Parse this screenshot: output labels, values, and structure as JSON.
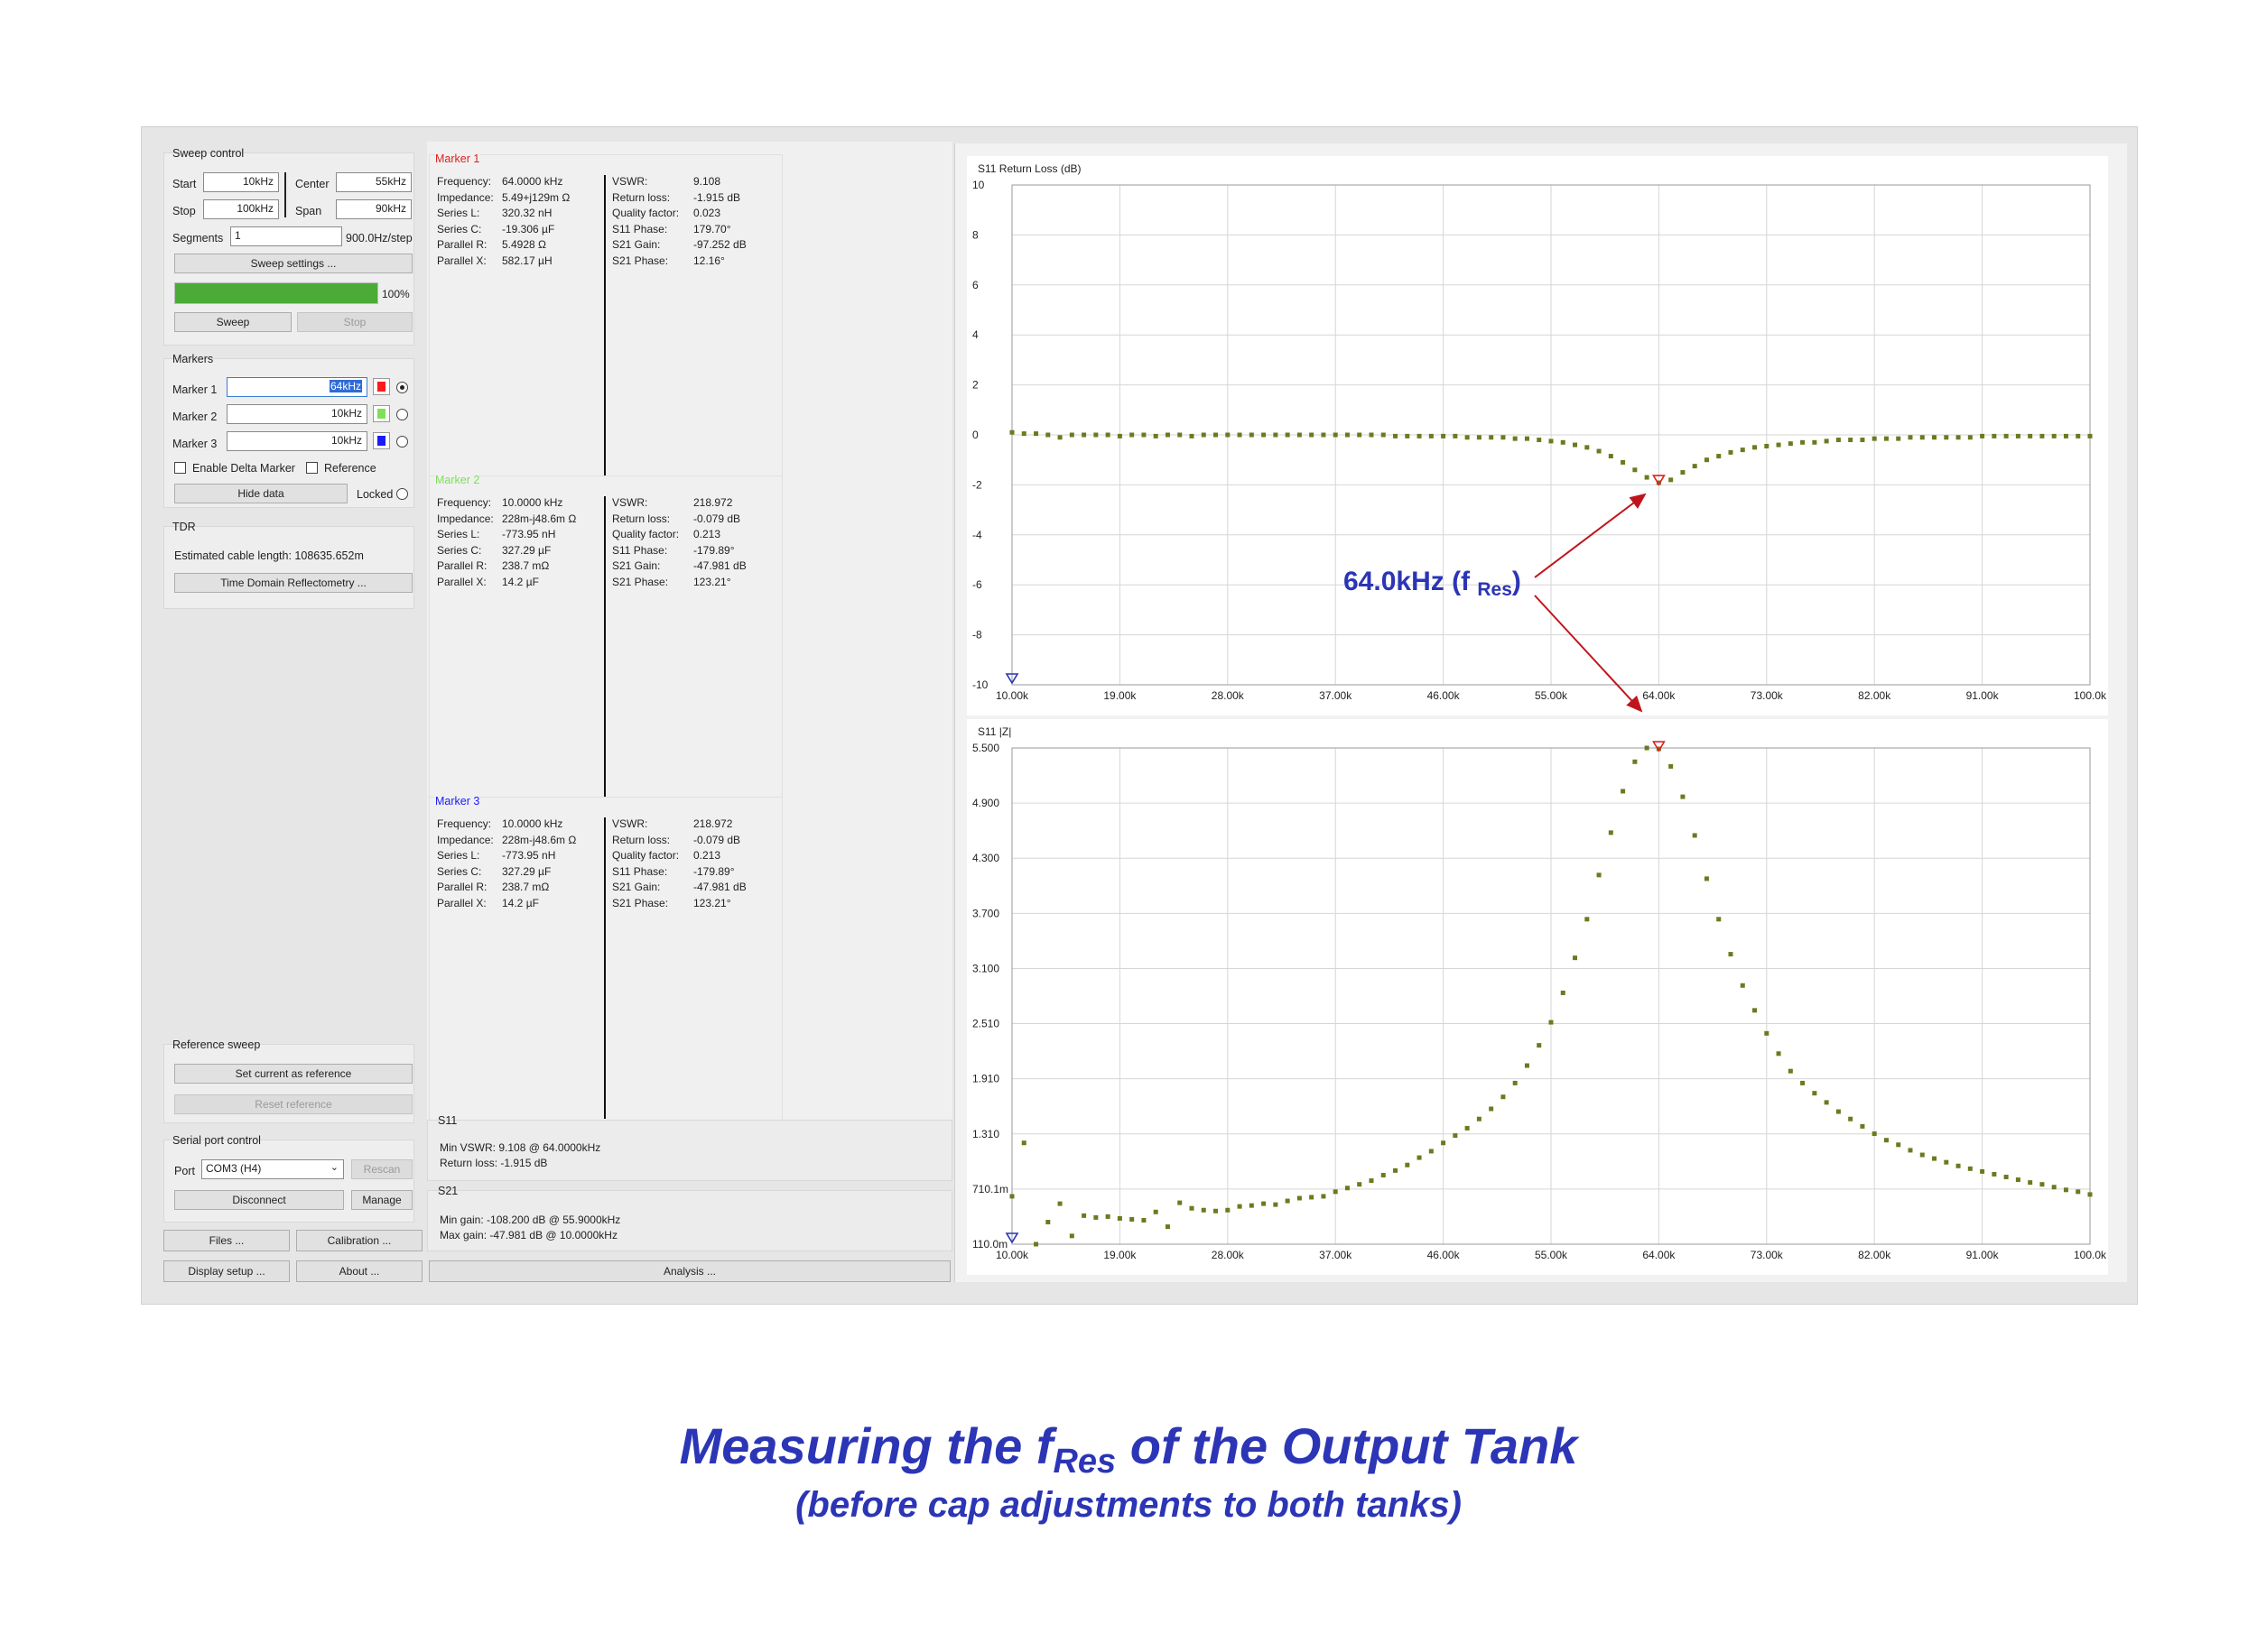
{
  "sweep_control": {
    "title": "Sweep control",
    "start_label": "Start",
    "start_value": "10kHz",
    "center_label": "Center",
    "center_value": "55kHz",
    "stop_label": "Stop",
    "stop_value": "100kHz",
    "span_label": "Span",
    "span_value": "90kHz",
    "segments_label": "Segments",
    "segments_value": "1",
    "step_text": "900.0Hz/step",
    "settings_button": "Sweep settings ...",
    "progress": 100,
    "progress_text": "100%",
    "sweep_button": "Sweep",
    "stop_button": "Stop"
  },
  "markers_group": {
    "title": "Markers",
    "items": [
      {
        "label": "Marker 1",
        "value": "64kHz",
        "color": "#ff1a1a",
        "selected": true
      },
      {
        "label": "Marker 2",
        "value": "10kHz",
        "color": "#7ee05a",
        "selected": false
      },
      {
        "label": "Marker 3",
        "value": "10kHz",
        "color": "#1a1aff",
        "selected": false
      }
    ],
    "delta_label": "Enable Delta Marker",
    "reference_label": "Reference",
    "hide_button": "Hide data",
    "locked_label": "Locked"
  },
  "tdr": {
    "title": "TDR",
    "cable_text": "Estimated cable length:  108635.652m",
    "button": "Time Domain Reflectometry ..."
  },
  "reference_sweep": {
    "title": "Reference sweep",
    "set_button": "Set current as reference",
    "reset_button": "Reset reference"
  },
  "serial": {
    "title": "Serial port control",
    "port_label": "Port",
    "port_value": "COM3 (H4)",
    "rescan_button": "Rescan",
    "disconnect_button": "Disconnect",
    "manage_button": "Manage"
  },
  "bottom_buttons": {
    "files": "Files ...",
    "calibration": "Calibration ...",
    "display": "Display setup ...",
    "about": "About ...",
    "analysis": "Analysis ..."
  },
  "marker_panels": [
    {
      "title": "Marker 1",
      "color": "#e02020",
      "left": [
        [
          "Frequency:",
          "64.0000 kHz"
        ],
        [
          "Impedance:",
          "5.49+j129m Ω"
        ],
        [
          "Series L:",
          "320.32 nH"
        ],
        [
          "Series C:",
          "-19.306 µF"
        ],
        [
          "Parallel R:",
          "5.4928 Ω"
        ],
        [
          "Parallel X:",
          "582.17 µH"
        ]
      ],
      "right": [
        [
          "VSWR:",
          "9.108"
        ],
        [
          "Return loss:",
          "-1.915 dB"
        ],
        [
          "Quality factor:",
          "0.023"
        ],
        [
          "S11 Phase:",
          "179.70°"
        ],
        [
          "S21 Gain:",
          "-97.252 dB"
        ],
        [
          "S21 Phase:",
          "12.16°"
        ]
      ]
    },
    {
      "title": "Marker 2",
      "color": "#7ee05a",
      "left": [
        [
          "Frequency:",
          "10.0000 kHz"
        ],
        [
          "Impedance:",
          "228m-j48.6m Ω"
        ],
        [
          "Series L:",
          "-773.95 nH"
        ],
        [
          "Series C:",
          "327.29 µF"
        ],
        [
          "Parallel R:",
          "238.7 mΩ"
        ],
        [
          "Parallel X:",
          "14.2 µF"
        ]
      ],
      "right": [
        [
          "VSWR:",
          "218.972"
        ],
        [
          "Return loss:",
          "-0.079 dB"
        ],
        [
          "Quality factor:",
          "0.213"
        ],
        [
          "S11 Phase:",
          "-179.89°"
        ],
        [
          "S21 Gain:",
          "-47.981 dB"
        ],
        [
          "S21 Phase:",
          "123.21°"
        ]
      ]
    },
    {
      "title": "Marker 3",
      "color": "#1a1aff",
      "left": [
        [
          "Frequency:",
          "10.0000 kHz"
        ],
        [
          "Impedance:",
          "228m-j48.6m Ω"
        ],
        [
          "Series L:",
          "-773.95 nH"
        ],
        [
          "Series C:",
          "327.29 µF"
        ],
        [
          "Parallel R:",
          "238.7 mΩ"
        ],
        [
          "Parallel X:",
          "14.2 µF"
        ]
      ],
      "right": [
        [
          "VSWR:",
          "218.972"
        ],
        [
          "Return loss:",
          "-0.079 dB"
        ],
        [
          "Quality factor:",
          "0.213"
        ],
        [
          "S11 Phase:",
          "-179.89°"
        ],
        [
          "S21 Gain:",
          "-47.981 dB"
        ],
        [
          "S21 Phase:",
          "123.21°"
        ]
      ]
    }
  ],
  "s11_summary": {
    "title": "S11",
    "min_vswr": "Min VSWR:  9.108 @ 64.0000kHz",
    "return_loss": "Return loss:  -1.915 dB"
  },
  "s21_summary": {
    "title": "S21",
    "min_gain": "Min gain:  -108.200 dB @ 55.9000kHz",
    "max_gain": "Max gain:  -47.981 dB @ 10.0000kHz"
  },
  "annotation": {
    "main": "64.0kHz (f ",
    "sub": "Res",
    "close": ")"
  },
  "caption": {
    "line1_a": "Measuring the f",
    "line1_sub": "Res",
    "line1_b": " of the Output Tank",
    "line2": "(before cap adjustments to both tanks)"
  },
  "chart_data": [
    {
      "type": "scatter",
      "title": "S11 Return Loss (dB)",
      "xlabel": "",
      "ylabel": "",
      "xlim": [
        10000,
        100000
      ],
      "ylim": [
        -10,
        10
      ],
      "x_ticks": [
        "10.00k",
        "19.00k",
        "28.00k",
        "37.00k",
        "46.00k",
        "55.00k",
        "64.00k",
        "73.00k",
        "82.00k",
        "91.00k",
        "100.0k"
      ],
      "y_ticks": [
        "10",
        "8",
        "6",
        "4",
        "2",
        "0",
        "-2",
        "-4",
        "-6",
        "-8",
        "-10"
      ],
      "grid": true,
      "color": "#6b7a1f",
      "marker_x": 64000,
      "marker_y": -1.915,
      "marker_color": "#e02020",
      "start_marker_x": 10000,
      "start_marker_color": "#2b35b5",
      "x": [
        10000,
        11000,
        12000,
        13000,
        14000,
        15000,
        16000,
        17000,
        18000,
        19000,
        20000,
        21000,
        22000,
        23000,
        24000,
        25000,
        26000,
        27000,
        28000,
        29000,
        30000,
        31000,
        32000,
        33000,
        34000,
        35000,
        36000,
        37000,
        38000,
        39000,
        40000,
        41000,
        42000,
        43000,
        44000,
        45000,
        46000,
        47000,
        48000,
        49000,
        50000,
        51000,
        52000,
        53000,
        54000,
        55000,
        56000,
        57000,
        58000,
        59000,
        60000,
        61000,
        62000,
        63000,
        64000,
        65000,
        66000,
        67000,
        68000,
        69000,
        70000,
        71000,
        72000,
        73000,
        74000,
        75000,
        76000,
        77000,
        78000,
        79000,
        80000,
        81000,
        82000,
        83000,
        84000,
        85000,
        86000,
        87000,
        88000,
        89000,
        90000,
        91000,
        92000,
        93000,
        94000,
        95000,
        96000,
        97000,
        98000,
        99000,
        100000
      ],
      "values": [
        0.1,
        0.05,
        0.05,
        0.0,
        -0.1,
        0.0,
        0.0,
        0.0,
        0.0,
        -0.05,
        0.0,
        0.0,
        -0.05,
        0.0,
        0.0,
        -0.05,
        0.0,
        0.0,
        0.0,
        0.0,
        0.0,
        0.0,
        0.0,
        0.0,
        0.0,
        0.0,
        0.0,
        0.0,
        0.0,
        0.0,
        0.0,
        0.0,
        -0.05,
        -0.05,
        -0.05,
        -0.05,
        -0.05,
        -0.05,
        -0.1,
        -0.1,
        -0.1,
        -0.1,
        -0.15,
        -0.15,
        -0.2,
        -0.25,
        -0.3,
        -0.4,
        -0.5,
        -0.65,
        -0.85,
        -1.1,
        -1.4,
        -1.7,
        -1.915,
        -1.8,
        -1.5,
        -1.25,
        -1.0,
        -0.85,
        -0.7,
        -0.6,
        -0.5,
        -0.45,
        -0.4,
        -0.35,
        -0.3,
        -0.3,
        -0.25,
        -0.2,
        -0.2,
        -0.2,
        -0.15,
        -0.15,
        -0.15,
        -0.1,
        -0.1,
        -0.1,
        -0.1,
        -0.1,
        -0.1,
        -0.05,
        -0.05,
        -0.05,
        -0.05,
        -0.05,
        -0.05,
        -0.05,
        -0.05,
        -0.05,
        -0.05
      ]
    },
    {
      "type": "scatter",
      "title": "S11 |Z|",
      "xlabel": "",
      "ylabel": "",
      "xlim": [
        10000,
        100000
      ],
      "ylim": [
        0.11,
        5.5
      ],
      "x_ticks": [
        "10.00k",
        "19.00k",
        "28.00k",
        "37.00k",
        "46.00k",
        "55.00k",
        "64.00k",
        "73.00k",
        "82.00k",
        "91.00k",
        "100.0k"
      ],
      "y_ticks": [
        "5.500",
        "4.900",
        "4.300",
        "3.700",
        "3.100",
        "2.510",
        "1.910",
        "1.310",
        "710.1m",
        "110.0m"
      ],
      "grid": true,
      "color": "#6b7a1f",
      "marker_x": 64000,
      "marker_y": 5.49,
      "marker_color": "#e02020",
      "start_marker_x": 10000,
      "start_marker_color": "#2b35b5",
      "x": [
        10000,
        11000,
        12000,
        13000,
        14000,
        15000,
        16000,
        17000,
        18000,
        19000,
        20000,
        21000,
        22000,
        23000,
        24000,
        25000,
        26000,
        27000,
        28000,
        29000,
        30000,
        31000,
        32000,
        33000,
        34000,
        35000,
        36000,
        37000,
        38000,
        39000,
        40000,
        41000,
        42000,
        43000,
        44000,
        45000,
        46000,
        47000,
        48000,
        49000,
        50000,
        51000,
        52000,
        53000,
        54000,
        55000,
        56000,
        57000,
        58000,
        59000,
        60000,
        61000,
        62000,
        63000,
        64000,
        65000,
        66000,
        67000,
        68000,
        69000,
        70000,
        71000,
        72000,
        73000,
        74000,
        75000,
        76000,
        77000,
        78000,
        79000,
        80000,
        81000,
        82000,
        83000,
        84000,
        85000,
        86000,
        87000,
        88000,
        89000,
        90000,
        91000,
        92000,
        93000,
        94000,
        95000,
        96000,
        97000,
        98000,
        99000,
        100000
      ],
      "values": [
        0.63,
        1.21,
        0.11,
        0.35,
        0.55,
        0.2,
        0.42,
        0.4,
        0.41,
        0.39,
        0.38,
        0.37,
        0.46,
        0.3,
        0.56,
        0.5,
        0.48,
        0.47,
        0.48,
        0.52,
        0.53,
        0.55,
        0.54,
        0.58,
        0.61,
        0.62,
        0.63,
        0.68,
        0.72,
        0.76,
        0.8,
        0.86,
        0.91,
        0.97,
        1.05,
        1.12,
        1.21,
        1.29,
        1.37,
        1.47,
        1.58,
        1.71,
        1.86,
        2.05,
        2.27,
        2.52,
        2.84,
        3.22,
        3.64,
        4.12,
        4.58,
        5.03,
        5.35,
        5.5,
        5.49,
        5.3,
        4.97,
        4.55,
        4.08,
        3.64,
        3.26,
        2.92,
        2.65,
        2.4,
        2.18,
        1.99,
        1.86,
        1.75,
        1.65,
        1.55,
        1.47,
        1.39,
        1.31,
        1.24,
        1.19,
        1.13,
        1.08,
        1.04,
        1.0,
        0.96,
        0.93,
        0.9,
        0.87,
        0.84,
        0.81,
        0.78,
        0.76,
        0.73,
        0.7,
        0.68,
        0.65
      ]
    }
  ]
}
